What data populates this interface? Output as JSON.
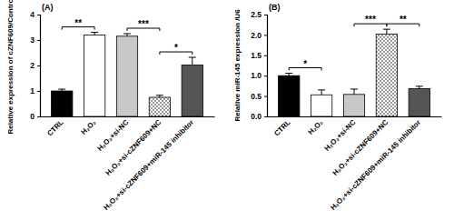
{
  "chart_data": [
    {
      "type": "bar",
      "title": "(A)",
      "y_label": "Relative expression of cZNF609/Control",
      "categories": [
        "CTRL",
        "H₂O₂",
        "H₂O₂+si-NC",
        "H₂O₂+si-cZNF609+NC",
        "H₂O₂+si-cZNF609+miR-145 inhibitor"
      ],
      "values": [
        1.0,
        3.2,
        3.15,
        0.75,
        2.02
      ],
      "errors": [
        0.07,
        0.1,
        0.1,
        0.08,
        0.3
      ],
      "colors": [
        "#000000",
        "#ffffff",
        "#c8c8c8",
        "#9a9a9a",
        "#555555"
      ],
      "ylim": [
        0,
        4
      ],
      "yticks": [
        0,
        1,
        2,
        3,
        4
      ],
      "significance": [
        {
          "groups": [
            0,
            1
          ],
          "label": "**"
        },
        {
          "groups": [
            2,
            3
          ],
          "label": "***"
        },
        {
          "groups": [
            3,
            4
          ],
          "label": "*"
        }
      ]
    },
    {
      "type": "bar",
      "title": "(B)",
      "y_label": "Relative miR-145 expression /U6",
      "categories": [
        "CTRL",
        "H₂O₂",
        "H₂O₂+si-NC",
        "H₂O₂+si-cZNF609+NC",
        "H₂O₂+si-cZNF609+miR-145 inhibitor"
      ],
      "values": [
        1.0,
        0.53,
        0.54,
        2.02,
        0.68
      ],
      "errors": [
        0.06,
        0.12,
        0.13,
        0.12,
        0.06
      ],
      "colors": [
        "#000000",
        "#ffffff",
        "#c8c8c8",
        "#9a9a9a",
        "#555555"
      ],
      "ylim": [
        0,
        2.5
      ],
      "yticks": [
        {
          "value": 0,
          "label": "0.0"
        },
        0.5,
        {
          "value": 1,
          "label": "1.0"
        },
        1.5,
        {
          "value": 2,
          "label": "2.0"
        },
        2.5
      ],
      "significance": [
        {
          "groups": [
            0,
            1
          ],
          "label": "*"
        },
        {
          "groups": [
            2,
            3
          ],
          "label": "***"
        },
        {
          "groups": [
            3,
            4
          ],
          "label": "**"
        }
      ]
    }
  ]
}
